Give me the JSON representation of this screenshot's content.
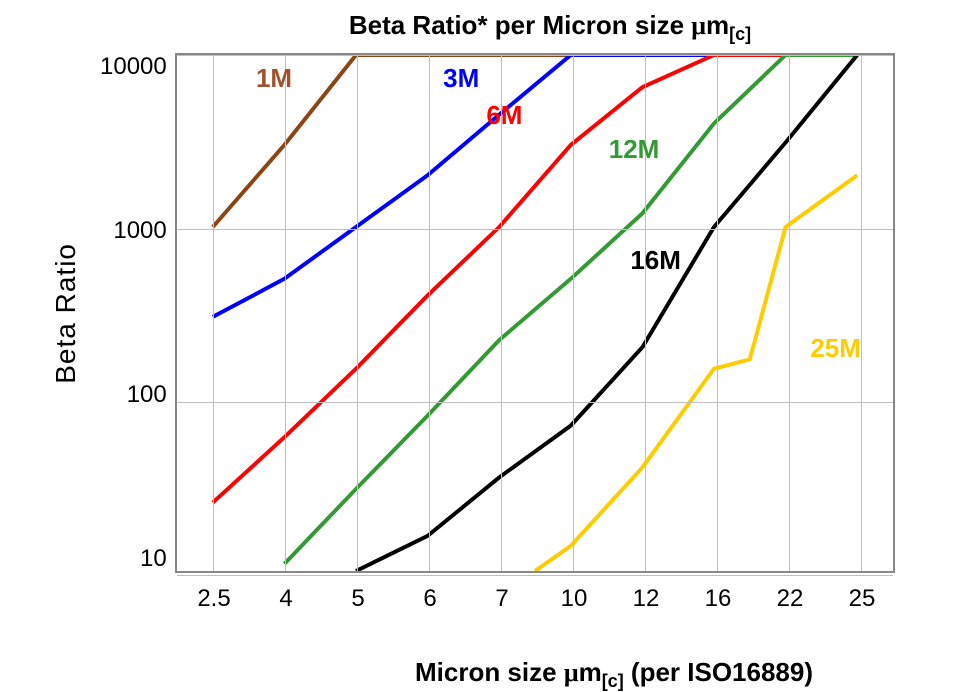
{
  "chart": {
    "type": "line",
    "title_parts": [
      "Beta Ratio* per Micron size ",
      "μ",
      "m",
      "[c]"
    ],
    "y_axis_label": "Beta Ratio",
    "x_axis_label_parts": [
      "Micron size ",
      "μ",
      "m",
      "[c]",
      " (per ISO16889)"
    ],
    "background_color": "#ffffff",
    "border_color": "#888888",
    "grid_color": "#bfbfbf",
    "title_fontsize": 26,
    "axis_label_fontsize": 28,
    "tick_fontsize": 24,
    "series_label_fontsize": 26,
    "line_width": 4,
    "y_scale": "log",
    "y_min": 10,
    "y_max": 10000,
    "y_ticks": [
      10,
      100,
      1000,
      10000
    ],
    "y_tick_labels": [
      "10",
      "100",
      "1000",
      "10000"
    ],
    "x_categories": [
      "2.5",
      "4",
      "5",
      "6",
      "7",
      "10",
      "12",
      "16",
      "22",
      "25"
    ],
    "x_positions": [
      0,
      1,
      2,
      3,
      4,
      5,
      6,
      7,
      8,
      9
    ],
    "series": [
      {
        "name": "1M",
        "color": "#8b4513",
        "label_color": "#a0522d",
        "label_pos": {
          "x": 0.6,
          "y_log": 9000
        },
        "data": [
          {
            "xi": 0,
            "y": 1000
          },
          {
            "xi": 1,
            "y": 3000
          },
          {
            "xi": 2,
            "y": 10000
          },
          {
            "xi": 9,
            "y": 10000
          }
        ]
      },
      {
        "name": "3M",
        "color": "#0000ff",
        "label_color": "#0000ff",
        "label_pos": {
          "x": 3.2,
          "y_log": 9000
        },
        "data": [
          {
            "xi": 0,
            "y": 300
          },
          {
            "xi": 1,
            "y": 500
          },
          {
            "xi": 2,
            "y": 1000
          },
          {
            "xi": 3,
            "y": 2000
          },
          {
            "xi": 4,
            "y": 4500
          },
          {
            "xi": 5,
            "y": 10000
          },
          {
            "xi": 9,
            "y": 10000
          }
        ]
      },
      {
        "name": "6M",
        "color": "#ff0000",
        "label_color": "#ff0000",
        "label_pos": {
          "x": 3.8,
          "y_log": 5500
        },
        "data": [
          {
            "xi": 0,
            "y": 25
          },
          {
            "xi": 1,
            "y": 60
          },
          {
            "xi": 2,
            "y": 150
          },
          {
            "xi": 3,
            "y": 400
          },
          {
            "xi": 4,
            "y": 1000
          },
          {
            "xi": 5,
            "y": 3000
          },
          {
            "xi": 6,
            "y": 6500
          },
          {
            "xi": 7,
            "y": 10000
          },
          {
            "xi": 9,
            "y": 10000
          }
        ]
      },
      {
        "name": "12M",
        "color": "#339933",
        "label_color": "#339933",
        "label_pos": {
          "x": 5.5,
          "y_log": 3500
        },
        "data": [
          {
            "xi": 1,
            "y": 11
          },
          {
            "xi": 2,
            "y": 30
          },
          {
            "xi": 3,
            "y": 80
          },
          {
            "xi": 4,
            "y": 220
          },
          {
            "xi": 5,
            "y": 500
          },
          {
            "xi": 6,
            "y": 1200
          },
          {
            "xi": 7,
            "y": 4000
          },
          {
            "xi": 8,
            "y": 10000
          },
          {
            "xi": 9,
            "y": 10000
          }
        ]
      },
      {
        "name": "16M",
        "color": "#000000",
        "label_color": "#000000",
        "label_pos": {
          "x": 5.8,
          "y_log": 800
        },
        "data": [
          {
            "xi": 2,
            "y": 10
          },
          {
            "xi": 3,
            "y": 16
          },
          {
            "xi": 4,
            "y": 35
          },
          {
            "xi": 5,
            "y": 70
          },
          {
            "xi": 6,
            "y": 200
          },
          {
            "xi": 7,
            "y": 1000
          },
          {
            "xi": 8,
            "y": 3100
          },
          {
            "xi": 9,
            "y": 10000
          }
        ]
      },
      {
        "name": "25M",
        "color": "#ffcc00",
        "label_color": "#ffcc00",
        "label_pos": {
          "x": 8.3,
          "y_log": 250
        },
        "data": [
          {
            "xi": 4.5,
            "y": 10
          },
          {
            "xi": 5,
            "y": 14
          },
          {
            "xi": 6,
            "y": 40
          },
          {
            "xi": 7,
            "y": 150
          },
          {
            "xi": 7.5,
            "y": 170
          },
          {
            "xi": 8,
            "y": 1000
          },
          {
            "xi": 9,
            "y": 2000
          }
        ]
      }
    ]
  }
}
